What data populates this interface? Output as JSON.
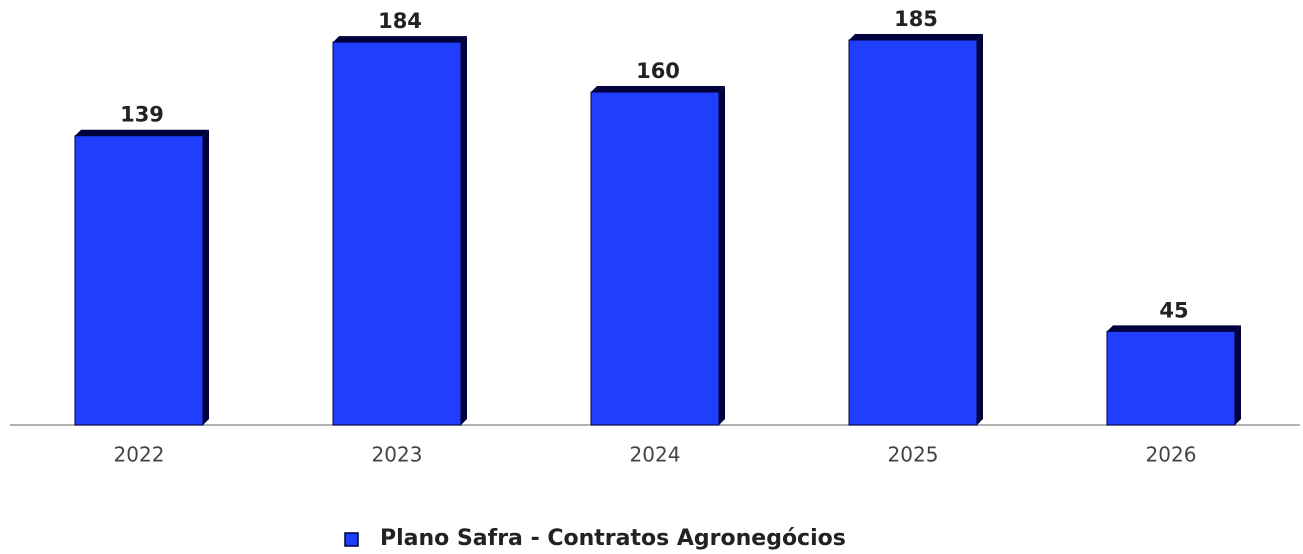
{
  "chart_data": {
    "type": "bar",
    "categories": [
      "2022",
      "2023",
      "2024",
      "2025",
      "2026"
    ],
    "series": [
      {
        "name": "Plano Safra - Contratos Agronegócios",
        "color": "#1f3ffd",
        "values": [
          139,
          184,
          160,
          185,
          45
        ]
      }
    ]
  }
}
